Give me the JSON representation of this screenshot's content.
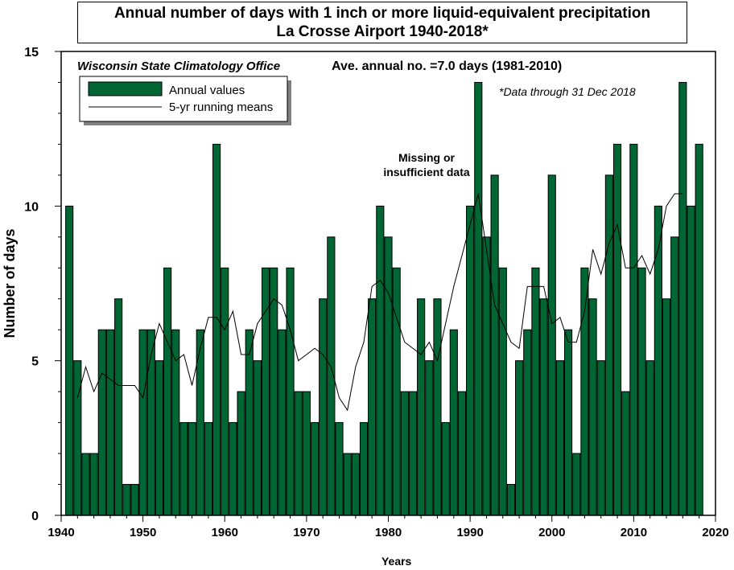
{
  "chart_data": {
    "type": "bar",
    "title": "Annual number of days with 1 inch or more liquid-equivalent precipitation",
    "subtitle": "La Crosse Airport  1940-2018*",
    "xlabel": "Years",
    "ylabel": "Number of days",
    "xlim": [
      1940,
      2020
    ],
    "ylim": [
      0,
      15
    ],
    "x_ticks": [
      1940,
      1950,
      1960,
      1970,
      1980,
      1990,
      2000,
      2010,
      2020
    ],
    "y_ticks": [
      0,
      5,
      10,
      15
    ],
    "legend_position": "top-left",
    "annotations": {
      "source": "Wisconsin State Climatology Office",
      "average": "Ave. annual no. =7.0 days (1981-2010)",
      "footnote": "*Data through 31 Dec 2018",
      "missing_line1": "Missing or",
      "missing_line2": "insufficient data"
    },
    "series": [
      {
        "name": "Annual values",
        "color": "#006633",
        "x": [
          1941,
          1942,
          1943,
          1944,
          1945,
          1946,
          1947,
          1948,
          1949,
          1950,
          1951,
          1952,
          1953,
          1954,
          1955,
          1956,
          1957,
          1958,
          1959,
          1960,
          1961,
          1962,
          1963,
          1964,
          1965,
          1966,
          1967,
          1968,
          1969,
          1970,
          1971,
          1972,
          1973,
          1974,
          1975,
          1976,
          1977,
          1978,
          1979,
          1980,
          1981,
          1982,
          1983,
          1984,
          1985,
          1986,
          1987,
          1988,
          1989,
          1990,
          1991,
          1992,
          1993,
          1994,
          1995,
          1996,
          1997,
          1998,
          1999,
          2000,
          2001,
          2002,
          2003,
          2004,
          2005,
          2006,
          2007,
          2008,
          2009,
          2010,
          2011,
          2012,
          2013,
          2014,
          2015,
          2016,
          2017,
          2018
        ],
        "values": [
          10,
          5,
          2,
          2,
          6,
          6,
          7,
          1,
          1,
          6,
          6,
          5,
          8,
          6,
          3,
          3,
          6,
          3,
          12,
          8,
          3,
          4,
          6,
          5,
          8,
          8,
          6,
          8,
          4,
          4,
          3,
          7,
          9,
          3,
          2,
          2,
          3,
          7,
          10,
          9,
          8,
          4,
          4,
          7,
          5,
          7,
          3,
          6,
          4,
          10,
          14,
          9,
          11,
          8,
          1,
          5,
          6,
          8,
          7,
          11,
          5,
          6,
          2,
          8,
          7,
          5,
          11,
          12,
          4,
          12,
          8,
          5,
          10,
          7,
          9,
          14,
          10,
          12
        ]
      },
      {
        "name": "5-yr running means",
        "color": "#000000",
        "x": [
          1942,
          1943,
          1944,
          1945,
          1946,
          1947,
          1948,
          1949,
          1950,
          1951,
          1952,
          1953,
          1954,
          1955,
          1956,
          1957,
          1958,
          1959,
          1960,
          1961,
          1962,
          1963,
          1964,
          1965,
          1966,
          1967,
          1968,
          1969,
          1970,
          1971,
          1972,
          1973,
          1974,
          1975,
          1976,
          1977,
          1978,
          1979,
          1980,
          1981,
          1982,
          1983,
          1984,
          1985,
          1986,
          1987,
          1988,
          1989,
          1990,
          1991,
          1992,
          1993,
          1994,
          1995,
          1996,
          1997,
          1998,
          1999,
          2000,
          2001,
          2002,
          2003,
          2004,
          2005,
          2006,
          2007,
          2008,
          2009,
          2010,
          2011,
          2012,
          2013,
          2014,
          2015,
          2016
        ],
        "values": [
          3.8,
          4.8,
          4.0,
          4.6,
          4.4,
          4.2,
          4.2,
          4.2,
          3.8,
          5.2,
          6.2,
          5.6,
          5.0,
          5.2,
          4.2,
          5.4,
          6.4,
          6.4,
          6.0,
          6.6,
          5.2,
          5.2,
          6.2,
          6.6,
          7.0,
          6.8,
          6.0,
          5.0,
          5.2,
          5.4,
          5.2,
          4.8,
          3.8,
          3.4,
          4.8,
          5.6,
          7.4,
          7.6,
          7.2,
          6.4,
          5.6,
          5.4,
          5.2,
          5.6,
          5.0,
          6.2,
          7.4,
          8.4,
          9.4,
          10.4,
          8.6,
          6.8,
          6.2,
          5.6,
          5.4,
          7.4,
          7.4,
          7.4,
          6.2,
          6.4,
          5.6,
          5.6,
          6.6,
          8.6,
          7.8,
          8.8,
          9.4,
          8.0,
          8.0,
          8.4,
          7.8,
          8.6,
          10.0,
          10.4,
          10.4
        ]
      }
    ]
  }
}
